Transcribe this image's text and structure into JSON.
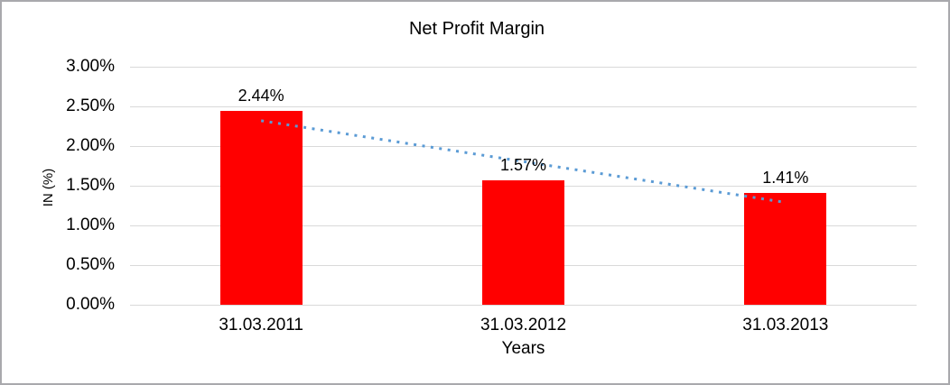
{
  "chart_data": {
    "type": "bar",
    "title": "Net Profit Margin",
    "categories": [
      "31.03.2011",
      "31.03.2012",
      "31.03.2013"
    ],
    "values": [
      2.44,
      1.57,
      1.41
    ],
    "data_labels": [
      "2.44%",
      "1.57%",
      "1.41%"
    ],
    "xlabel": "Years",
    "ylabel": "IN (%)",
    "ylim": [
      0,
      3.0
    ],
    "ytick_step": 0.5,
    "ytick_labels": [
      "0.00%",
      "0.50%",
      "1.00%",
      "1.50%",
      "2.00%",
      "2.50%",
      "3.00%"
    ],
    "grid": true,
    "legend": "none",
    "bar_color": "#ff0000",
    "gridline_color": "#d9d9d9",
    "trendline": {
      "type": "linear",
      "style": "dotted",
      "color": "#5b9bd5",
      "start_value": 2.32,
      "end_value": 1.29
    }
  }
}
